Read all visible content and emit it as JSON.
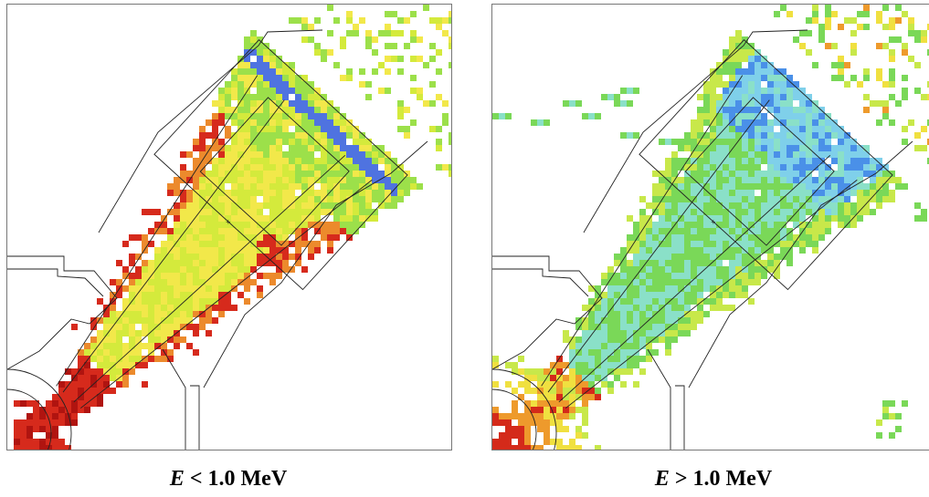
{
  "panels": [
    {
      "id": "left",
      "caption_symbol": "E",
      "caption_rest": " < 1.0 MeV",
      "palette": {
        "blue": "#4f73e0",
        "lightblue": "#8ec0f0",
        "green": "#9ce04a",
        "yellowgreen": "#d4ea3c",
        "yellow": "#f2e84a",
        "orange": "#ec8a2c",
        "red": "#d62a1c",
        "darkred": "#b01410"
      }
    },
    {
      "id": "right",
      "caption_symbol": "E",
      "caption_rest": " > 1.0 MeV",
      "palette": {
        "blue": "#4a90e8",
        "lightblue": "#7fd0ea",
        "cyan": "#8ae0c8",
        "green": "#7ad858",
        "yellowgreen": "#c8e84a",
        "yellow": "#f0e040",
        "orange": "#ee9a2c",
        "red": "#d42a1a"
      }
    }
  ]
}
